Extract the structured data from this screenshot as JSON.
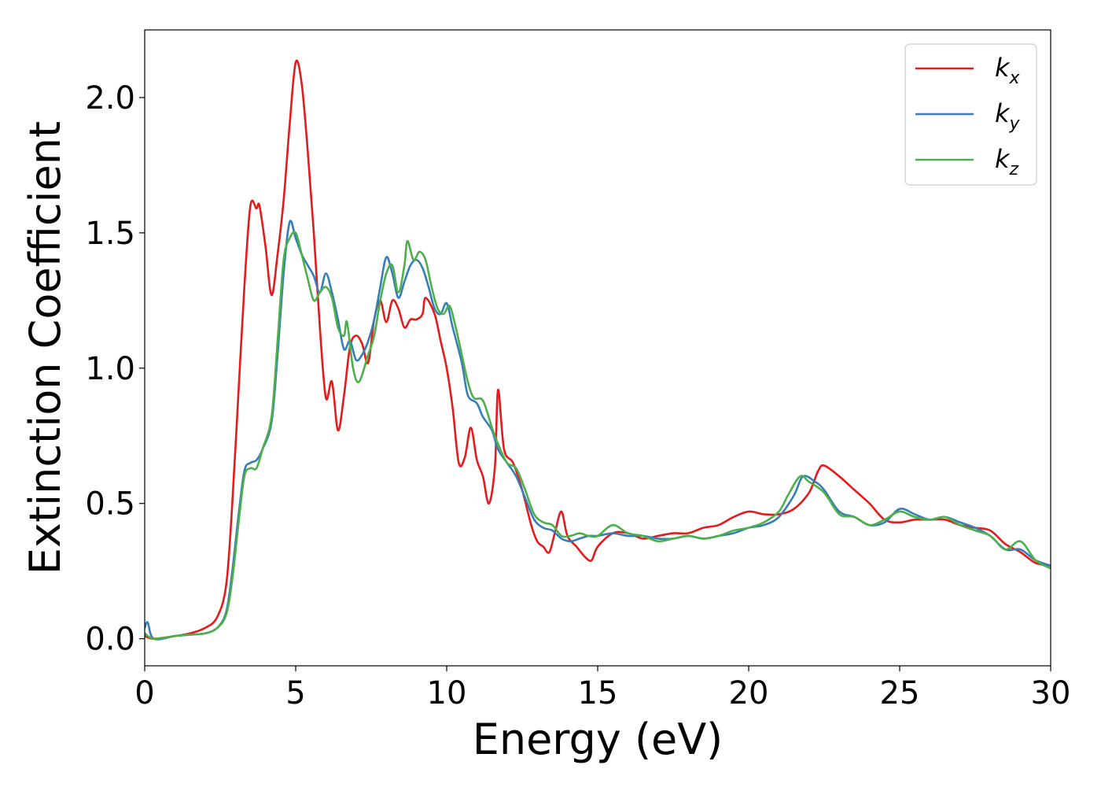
{
  "chart_data": {
    "type": "line",
    "title": "",
    "xlabel": "Energy (eV)",
    "ylabel": "Extinction Coefficient",
    "xlim": [
      0,
      30
    ],
    "ylim": [
      -0.1,
      2.25
    ],
    "xticks": [
      0,
      5,
      10,
      15,
      20,
      25,
      30
    ],
    "xtick_labels": [
      "0",
      "5",
      "10",
      "15",
      "20",
      "25",
      "30"
    ],
    "yticks": [
      0.0,
      0.5,
      1.0,
      1.5,
      2.0
    ],
    "ytick_labels": [
      "0.0",
      "0.5",
      "1.0",
      "1.5",
      "2.0"
    ],
    "grid": false,
    "legend_position": "top-right",
    "series": [
      {
        "name": "k_x",
        "label_base": "k",
        "label_sub": "x",
        "color": "#e41a1c",
        "points": [
          [
            0,
            0.01
          ],
          [
            0.3,
            0.0
          ],
          [
            1.0,
            0.01
          ],
          [
            1.5,
            0.02
          ],
          [
            2.0,
            0.04
          ],
          [
            2.4,
            0.08
          ],
          [
            2.7,
            0.2
          ],
          [
            2.9,
            0.5
          ],
          [
            3.1,
            0.9
          ],
          [
            3.3,
            1.3
          ],
          [
            3.5,
            1.6
          ],
          [
            3.7,
            1.59
          ],
          [
            3.8,
            1.6
          ],
          [
            4.0,
            1.45
          ],
          [
            4.2,
            1.27
          ],
          [
            4.4,
            1.42
          ],
          [
            4.6,
            1.62
          ],
          [
            4.8,
            1.9
          ],
          [
            5.0,
            2.13
          ],
          [
            5.2,
            2.05
          ],
          [
            5.4,
            1.8
          ],
          [
            5.6,
            1.5
          ],
          [
            5.8,
            1.15
          ],
          [
            6.0,
            0.89
          ],
          [
            6.2,
            0.95
          ],
          [
            6.4,
            0.77
          ],
          [
            6.6,
            0.9
          ],
          [
            6.8,
            1.08
          ],
          [
            7.0,
            1.12
          ],
          [
            7.2,
            1.09
          ],
          [
            7.4,
            1.02
          ],
          [
            7.6,
            1.18
          ],
          [
            7.8,
            1.25
          ],
          [
            8.0,
            1.17
          ],
          [
            8.2,
            1.25
          ],
          [
            8.4,
            1.22
          ],
          [
            8.6,
            1.15
          ],
          [
            8.8,
            1.18
          ],
          [
            9.0,
            1.18
          ],
          [
            9.2,
            1.2
          ],
          [
            9.3,
            1.26
          ],
          [
            9.6,
            1.2
          ],
          [
            9.8,
            1.1
          ],
          [
            10.0,
            1.0
          ],
          [
            10.2,
            0.85
          ],
          [
            10.4,
            0.65
          ],
          [
            10.6,
            0.67
          ],
          [
            10.8,
            0.78
          ],
          [
            11.0,
            0.66
          ],
          [
            11.2,
            0.6
          ],
          [
            11.4,
            0.5
          ],
          [
            11.6,
            0.64
          ],
          [
            11.7,
            0.92
          ],
          [
            11.9,
            0.7
          ],
          [
            12.2,
            0.65
          ],
          [
            12.5,
            0.55
          ],
          [
            12.8,
            0.42
          ],
          [
            13.0,
            0.36
          ],
          [
            13.2,
            0.34
          ],
          [
            13.4,
            0.32
          ],
          [
            13.6,
            0.4
          ],
          [
            13.8,
            0.47
          ],
          [
            14.0,
            0.38
          ],
          [
            14.3,
            0.34
          ],
          [
            14.6,
            0.3
          ],
          [
            14.8,
            0.29
          ],
          [
            15.0,
            0.34
          ],
          [
            15.5,
            0.39
          ],
          [
            16.0,
            0.39
          ],
          [
            16.5,
            0.37
          ],
          [
            17.0,
            0.38
          ],
          [
            17.5,
            0.39
          ],
          [
            18.0,
            0.39
          ],
          [
            18.5,
            0.41
          ],
          [
            19.0,
            0.42
          ],
          [
            19.5,
            0.45
          ],
          [
            20.0,
            0.47
          ],
          [
            20.5,
            0.46
          ],
          [
            21.0,
            0.46
          ],
          [
            21.5,
            0.48
          ],
          [
            22.0,
            0.54
          ],
          [
            22.3,
            0.62
          ],
          [
            22.5,
            0.64
          ],
          [
            23.0,
            0.6
          ],
          [
            23.5,
            0.55
          ],
          [
            24.0,
            0.5
          ],
          [
            24.5,
            0.44
          ],
          [
            25.0,
            0.43
          ],
          [
            25.5,
            0.44
          ],
          [
            26.0,
            0.44
          ],
          [
            26.5,
            0.44
          ],
          [
            27.0,
            0.42
          ],
          [
            27.5,
            0.41
          ],
          [
            28.0,
            0.4
          ],
          [
            28.5,
            0.35
          ],
          [
            29.0,
            0.32
          ],
          [
            29.5,
            0.28
          ],
          [
            30.0,
            0.27
          ]
        ]
      },
      {
        "name": "k_y",
        "label_base": "k",
        "label_sub": "y",
        "color": "#377eb8",
        "points": [
          [
            0,
            0.04
          ],
          [
            0.1,
            0.06
          ],
          [
            0.3,
            0.0
          ],
          [
            1.0,
            0.01
          ],
          [
            1.5,
            0.015
          ],
          [
            2.0,
            0.02
          ],
          [
            2.4,
            0.04
          ],
          [
            2.7,
            0.1
          ],
          [
            2.9,
            0.25
          ],
          [
            3.1,
            0.45
          ],
          [
            3.3,
            0.62
          ],
          [
            3.5,
            0.65
          ],
          [
            3.7,
            0.66
          ],
          [
            3.9,
            0.7
          ],
          [
            4.2,
            0.8
          ],
          [
            4.4,
            1.05
          ],
          [
            4.6,
            1.35
          ],
          [
            4.8,
            1.54
          ],
          [
            5.0,
            1.48
          ],
          [
            5.2,
            1.42
          ],
          [
            5.4,
            1.38
          ],
          [
            5.6,
            1.34
          ],
          [
            5.8,
            1.28
          ],
          [
            6.0,
            1.35
          ],
          [
            6.2,
            1.28
          ],
          [
            6.4,
            1.18
          ],
          [
            6.6,
            1.07
          ],
          [
            6.8,
            1.1
          ],
          [
            7.0,
            1.03
          ],
          [
            7.2,
            1.05
          ],
          [
            7.4,
            1.1
          ],
          [
            7.6,
            1.18
          ],
          [
            7.8,
            1.3
          ],
          [
            8.0,
            1.41
          ],
          [
            8.2,
            1.35
          ],
          [
            8.4,
            1.26
          ],
          [
            8.6,
            1.32
          ],
          [
            8.8,
            1.38
          ],
          [
            9.0,
            1.4
          ],
          [
            9.2,
            1.37
          ],
          [
            9.4,
            1.3
          ],
          [
            9.6,
            1.22
          ],
          [
            9.8,
            1.2
          ],
          [
            10.0,
            1.24
          ],
          [
            10.2,
            1.15
          ],
          [
            10.5,
            1.02
          ],
          [
            10.7,
            0.9
          ],
          [
            11.0,
            0.87
          ],
          [
            11.2,
            0.82
          ],
          [
            11.5,
            0.77
          ],
          [
            11.7,
            0.7
          ],
          [
            12.0,
            0.65
          ],
          [
            12.3,
            0.6
          ],
          [
            12.6,
            0.52
          ],
          [
            12.9,
            0.44
          ],
          [
            13.2,
            0.41
          ],
          [
            13.5,
            0.4
          ],
          [
            13.8,
            0.37
          ],
          [
            14.1,
            0.36
          ],
          [
            14.4,
            0.37
          ],
          [
            14.7,
            0.38
          ],
          [
            15.0,
            0.38
          ],
          [
            15.5,
            0.39
          ],
          [
            16.0,
            0.38
          ],
          [
            16.5,
            0.38
          ],
          [
            17.0,
            0.37
          ],
          [
            17.5,
            0.37
          ],
          [
            18.0,
            0.38
          ],
          [
            18.5,
            0.37
          ],
          [
            19.0,
            0.38
          ],
          [
            19.5,
            0.39
          ],
          [
            20.0,
            0.41
          ],
          [
            20.5,
            0.42
          ],
          [
            21.0,
            0.45
          ],
          [
            21.5,
            0.53
          ],
          [
            21.8,
            0.6
          ],
          [
            22.2,
            0.58
          ],
          [
            22.5,
            0.55
          ],
          [
            23.0,
            0.47
          ],
          [
            23.5,
            0.45
          ],
          [
            24.0,
            0.42
          ],
          [
            24.5,
            0.43
          ],
          [
            25.0,
            0.48
          ],
          [
            25.5,
            0.46
          ],
          [
            26.0,
            0.44
          ],
          [
            26.5,
            0.45
          ],
          [
            27.0,
            0.43
          ],
          [
            27.5,
            0.41
          ],
          [
            28.0,
            0.38
          ],
          [
            28.5,
            0.33
          ],
          [
            29.0,
            0.33
          ],
          [
            29.5,
            0.29
          ],
          [
            30.0,
            0.27
          ]
        ]
      },
      {
        "name": "k_z",
        "label_base": "k",
        "label_sub": "z",
        "color": "#4daf4a",
        "points": [
          [
            0,
            0.02
          ],
          [
            0.3,
            0.0
          ],
          [
            1.0,
            0.01
          ],
          [
            1.5,
            0.015
          ],
          [
            2.0,
            0.02
          ],
          [
            2.4,
            0.04
          ],
          [
            2.7,
            0.09
          ],
          [
            2.9,
            0.22
          ],
          [
            3.1,
            0.42
          ],
          [
            3.3,
            0.6
          ],
          [
            3.5,
            0.63
          ],
          [
            3.7,
            0.63
          ],
          [
            3.9,
            0.7
          ],
          [
            4.2,
            0.82
          ],
          [
            4.4,
            1.1
          ],
          [
            4.6,
            1.4
          ],
          [
            4.8,
            1.48
          ],
          [
            5.0,
            1.5
          ],
          [
            5.2,
            1.42
          ],
          [
            5.4,
            1.33
          ],
          [
            5.6,
            1.25
          ],
          [
            5.8,
            1.28
          ],
          [
            6.0,
            1.3
          ],
          [
            6.2,
            1.26
          ],
          [
            6.4,
            1.15
          ],
          [
            6.6,
            1.12
          ],
          [
            6.7,
            1.17
          ],
          [
            6.9,
            1.0
          ],
          [
            7.1,
            0.95
          ],
          [
            7.4,
            1.05
          ],
          [
            7.6,
            1.12
          ],
          [
            7.8,
            1.25
          ],
          [
            8.0,
            1.35
          ],
          [
            8.2,
            1.38
          ],
          [
            8.4,
            1.28
          ],
          [
            8.6,
            1.38
          ],
          [
            8.7,
            1.47
          ],
          [
            8.9,
            1.4
          ],
          [
            9.1,
            1.43
          ],
          [
            9.3,
            1.4
          ],
          [
            9.5,
            1.3
          ],
          [
            9.7,
            1.22
          ],
          [
            9.9,
            1.2
          ],
          [
            10.1,
            1.23
          ],
          [
            10.3,
            1.15
          ],
          [
            10.5,
            1.05
          ],
          [
            10.7,
            0.95
          ],
          [
            10.9,
            0.89
          ],
          [
            11.2,
            0.88
          ],
          [
            11.5,
            0.78
          ],
          [
            11.7,
            0.72
          ],
          [
            12.0,
            0.65
          ],
          [
            12.3,
            0.63
          ],
          [
            12.6,
            0.55
          ],
          [
            12.9,
            0.46
          ],
          [
            13.2,
            0.43
          ],
          [
            13.5,
            0.42
          ],
          [
            13.8,
            0.38
          ],
          [
            14.1,
            0.38
          ],
          [
            14.4,
            0.39
          ],
          [
            14.7,
            0.38
          ],
          [
            15.0,
            0.38
          ],
          [
            15.5,
            0.42
          ],
          [
            16.0,
            0.39
          ],
          [
            16.5,
            0.38
          ],
          [
            17.0,
            0.36
          ],
          [
            17.5,
            0.37
          ],
          [
            18.0,
            0.38
          ],
          [
            18.5,
            0.37
          ],
          [
            19.0,
            0.38
          ],
          [
            19.5,
            0.4
          ],
          [
            20.0,
            0.41
          ],
          [
            20.5,
            0.43
          ],
          [
            21.0,
            0.47
          ],
          [
            21.3,
            0.53
          ],
          [
            21.7,
            0.6
          ],
          [
            22.0,
            0.58
          ],
          [
            22.5,
            0.54
          ],
          [
            23.0,
            0.46
          ],
          [
            23.5,
            0.45
          ],
          [
            24.0,
            0.42
          ],
          [
            24.5,
            0.44
          ],
          [
            25.0,
            0.47
          ],
          [
            25.5,
            0.45
          ],
          [
            26.0,
            0.44
          ],
          [
            26.5,
            0.45
          ],
          [
            27.0,
            0.42
          ],
          [
            27.5,
            0.4
          ],
          [
            28.0,
            0.38
          ],
          [
            28.5,
            0.33
          ],
          [
            29.0,
            0.36
          ],
          [
            29.5,
            0.29
          ],
          [
            30.0,
            0.26
          ]
        ]
      }
    ]
  }
}
